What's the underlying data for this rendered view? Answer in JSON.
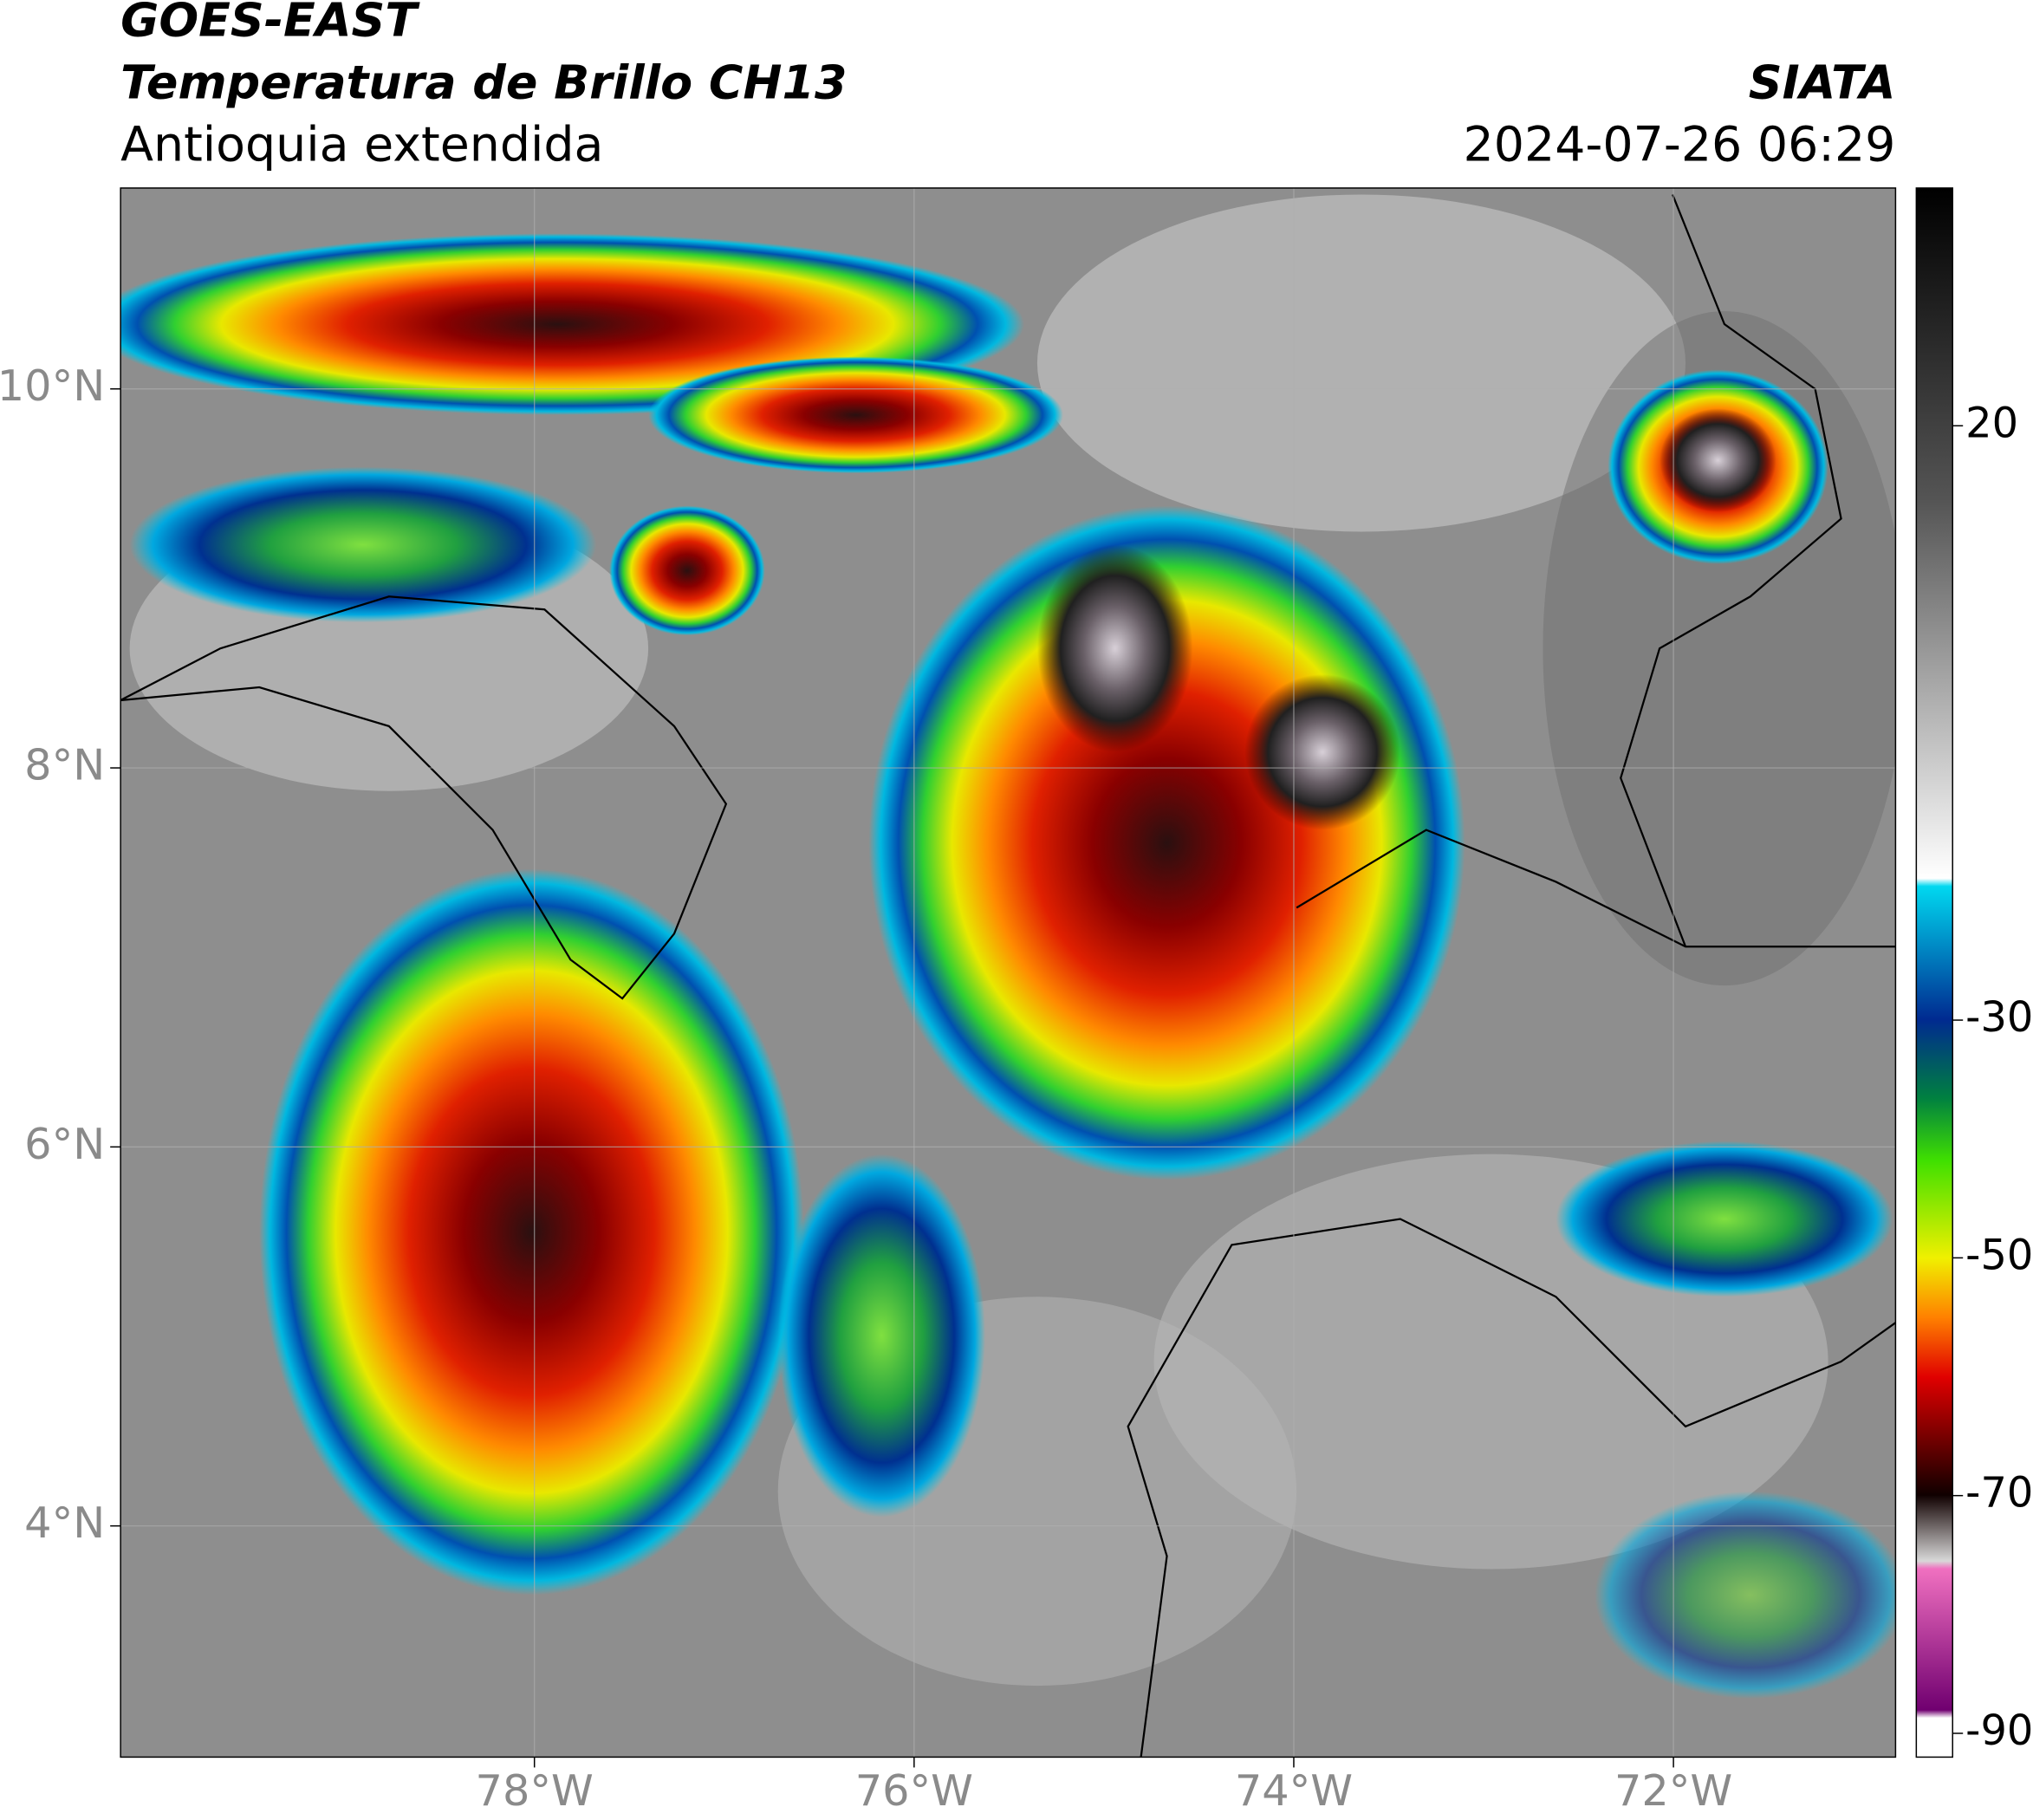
{
  "header": {
    "satellite": "GOES-EAST",
    "title": "Temperatura de Brillo CH13",
    "region": "Antioquia extendida",
    "source": "SIATA",
    "datetime": "2024-07-26 06:29"
  },
  "map": {
    "xlim": [
      -80.18,
      -70.83
    ],
    "ylim": [
      2.78,
      11.06
    ],
    "xticks": [
      {
        "value": -78,
        "label": "78°W"
      },
      {
        "value": -76,
        "label": "76°W"
      },
      {
        "value": -74,
        "label": "74°W"
      },
      {
        "value": -72,
        "label": "72°W"
      }
    ],
    "yticks": [
      {
        "value": 4,
        "label": "4°N"
      },
      {
        "value": 6,
        "label": "6°N"
      },
      {
        "value": 8,
        "label": "8°N"
      },
      {
        "value": 10,
        "label": "10°N"
      }
    ],
    "grid": true
  },
  "colorbar": {
    "lim": [
      -92,
      40
    ],
    "ticks": [
      20,
      -30,
      -50,
      -70,
      -90
    ]
  }
}
